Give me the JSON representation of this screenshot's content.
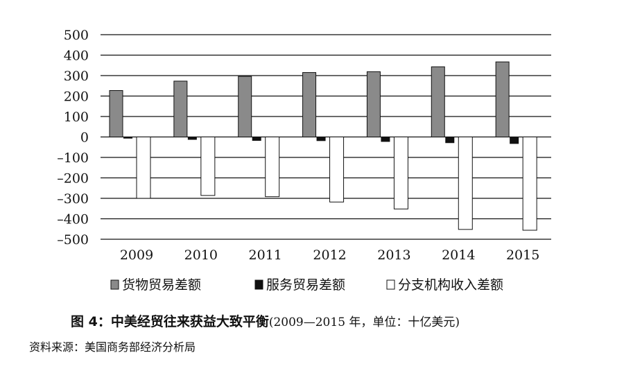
{
  "chart_data": {
    "type": "bar",
    "categories": [
      "2009",
      "2010",
      "2011",
      "2012",
      "2013",
      "2014",
      "2015"
    ],
    "series": [
      {
        "name": "货物贸易差额",
        "values": [
          227,
          273,
          296,
          315,
          319,
          343,
          367
        ],
        "color": "#8a8a8a"
      },
      {
        "name": "服务贸易差额",
        "values": [
          -6,
          -12,
          -17,
          -18,
          -22,
          -28,
          -32
        ],
        "color": "#111111"
      },
      {
        "name": "分支机构收入差额",
        "values": [
          -300,
          -286,
          -292,
          -318,
          -352,
          -452,
          -456
        ],
        "color": "#ffffff"
      }
    ],
    "ylim": [
      -500,
      500
    ],
    "yticks": [
      "500",
      "400",
      "300",
      "200",
      "100",
      "0",
      "–100",
      "–200",
      "–300",
      "–400",
      "–500"
    ],
    "ytick_values": [
      500,
      400,
      300,
      200,
      100,
      0,
      -100,
      -200,
      -300,
      -400,
      -500
    ],
    "grid": true,
    "legend_position": "bottom"
  },
  "caption": {
    "title": "图 4：中美经贸往来获益大致平衡",
    "note": "(2009—2015 年，单位：十亿美元)"
  },
  "source": "资料来源：美国商务部经济分析局"
}
